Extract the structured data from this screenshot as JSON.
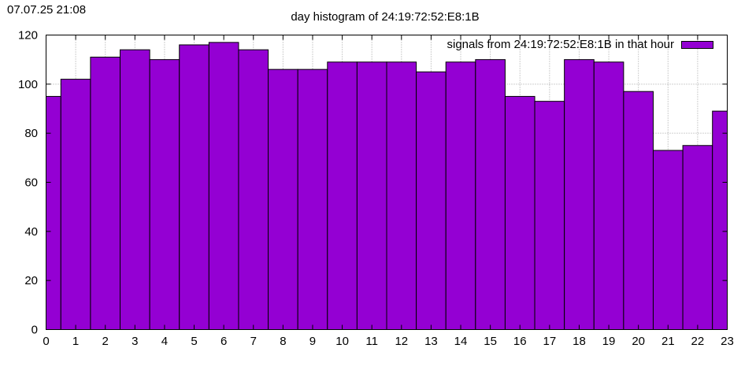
{
  "timestamp": "07.07.25 21:08",
  "colors": {
    "bar_fill": "#9400d3",
    "bar_stroke": "#000000",
    "grid": "#a0a0a0"
  },
  "chart_data": {
    "type": "bar",
    "title": "day histogram of 24:19:72:52:E8:1B",
    "xlabel": "",
    "ylabel": "",
    "categories": [
      0,
      1,
      2,
      3,
      4,
      5,
      6,
      7,
      8,
      9,
      10,
      11,
      12,
      13,
      14,
      15,
      16,
      17,
      18,
      19,
      20,
      21,
      22,
      23
    ],
    "x_ticks": [
      0,
      1,
      2,
      3,
      4,
      5,
      6,
      7,
      8,
      9,
      10,
      11,
      12,
      13,
      14,
      15,
      16,
      17,
      18,
      19,
      20,
      21,
      22,
      23
    ],
    "xlim": [
      0,
      23
    ],
    "ylim": [
      0,
      120
    ],
    "y_ticks": [
      0,
      20,
      40,
      60,
      80,
      100,
      120
    ],
    "grid": true,
    "legend_position": "top-right",
    "series": [
      {
        "name": "signals from 24:19:72:52:E8:1B in that hour",
        "values": [
          95,
          102,
          111,
          114,
          110,
          116,
          117,
          114,
          106,
          106,
          109,
          109,
          109,
          105,
          109,
          110,
          95,
          93,
          110,
          109,
          97,
          73,
          75,
          89
        ]
      }
    ]
  }
}
